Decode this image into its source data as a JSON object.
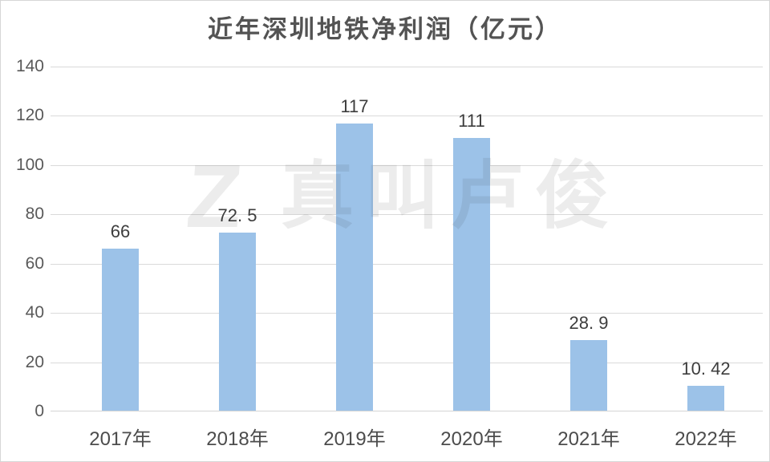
{
  "title": "近年深圳地铁净利润（亿元）",
  "watermark": {
    "logo": "Z",
    "text": "真叫卢俊"
  },
  "colors": {
    "bar": "#9cc2e8",
    "gridline": "#dadada",
    "axis": "#d5d5d5",
    "frame_border": "#d6d6d6",
    "title_text": "#535353",
    "tick_text": "#595959",
    "x_label_text": "#4c4c4c",
    "value_label_text": "#3d3d3d",
    "watermark_text": "rgba(40,40,40,0.085)"
  },
  "chart_data": {
    "type": "bar",
    "title": "近年深圳地铁净利润（亿元）",
    "categories": [
      "2017年",
      "2018年",
      "2019年",
      "2020年",
      "2021年",
      "2022年"
    ],
    "values": [
      66,
      72.5,
      117,
      111,
      28.9,
      10.42
    ],
    "value_labels": [
      "66",
      "72. 5",
      "117",
      "111",
      "28. 9",
      "10. 42"
    ],
    "xlabel": "",
    "ylabel": "",
    "ylim": [
      0,
      140
    ],
    "yticks": [
      0,
      20,
      40,
      60,
      80,
      100,
      120,
      140
    ],
    "grid": true,
    "legend": false
  }
}
